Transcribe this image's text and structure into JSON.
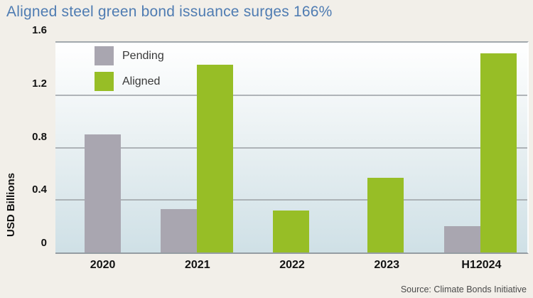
{
  "header": {
    "title": "Aligned steel green bond issuance surges 166%",
    "title_color": "#4f7cb2"
  },
  "chart_data": {
    "type": "bar",
    "title": "Aligned steel green bond issuance surges 166%",
    "categories": [
      "2020",
      "2021",
      "2022",
      "2023",
      "H12024"
    ],
    "series": [
      {
        "name": "Pending",
        "color": "#a9a6b0",
        "values": [
          0.9,
          0.33,
          null,
          null,
          0.2
        ]
      },
      {
        "name": "Aligned",
        "color": "#97be26",
        "values": [
          null,
          1.43,
          0.32,
          0.57,
          1.52
        ]
      }
    ],
    "xlabel": "",
    "ylabel": "USD Billions",
    "ylim": [
      0,
      1.6
    ],
    "yticks": [
      0,
      0.4,
      0.8,
      1.2,
      1.6
    ],
    "grid": true,
    "legend_position": "top-left",
    "plot_bg_gradient": [
      "#ffffff",
      "#cfe0e6"
    ]
  },
  "source": {
    "label": "Source: Climate Bonds Initiative"
  }
}
